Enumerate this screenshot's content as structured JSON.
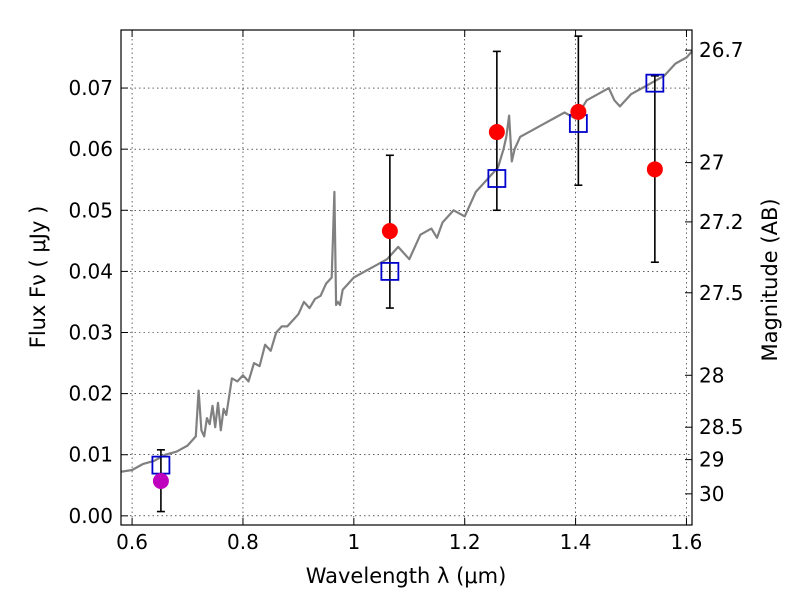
{
  "chart_data": {
    "type": "line",
    "xlabel": "Wavelength  λ (μm)",
    "ylabel": "Flux  Fν  ( μJy )",
    "ylabel_right": "Magnitude (AB)",
    "xlim": [
      0.58,
      1.61
    ],
    "ylim": [
      -0.0015,
      0.0795
    ],
    "grid": true,
    "x_ticks": [
      0.6,
      0.8,
      1.0,
      1.2,
      1.4,
      1.6
    ],
    "x_tick_labels": [
      "0.6",
      "0.8",
      "1",
      "1.2",
      "1.4",
      "1.6"
    ],
    "y_ticks": [
      0.0,
      0.01,
      0.02,
      0.03,
      0.04,
      0.05,
      0.06,
      0.07
    ],
    "y_tick_labels": [
      "0.00",
      "0.01",
      "0.02",
      "0.03",
      "0.04",
      "0.05",
      "0.06",
      "0.07"
    ],
    "right_ticks": [
      {
        "label": "26.7",
        "flux": 0.0762
      },
      {
        "label": "27",
        "flux": 0.0578
      },
      {
        "label": "27.2",
        "flux": 0.0481
      },
      {
        "label": "27.5",
        "flux": 0.0365
      },
      {
        "label": "28",
        "flux": 0.023
      },
      {
        "label": "28.5",
        "flux": 0.0145
      },
      {
        "label": "29",
        "flux": 0.0092
      },
      {
        "label": "30",
        "flux": 0.0036
      }
    ],
    "series": [
      {
        "type": "line",
        "color": "#808080",
        "x": [
          0.58,
          0.6,
          0.62,
          0.64,
          0.66,
          0.68,
          0.7,
          0.715,
          0.72,
          0.725,
          0.73,
          0.735,
          0.74,
          0.745,
          0.75,
          0.755,
          0.76,
          0.765,
          0.77,
          0.78,
          0.79,
          0.8,
          0.81,
          0.82,
          0.83,
          0.84,
          0.85,
          0.86,
          0.87,
          0.88,
          0.89,
          0.9,
          0.91,
          0.92,
          0.93,
          0.94,
          0.95,
          0.96,
          0.965,
          0.968,
          0.971,
          0.975,
          0.98,
          0.99,
          1.0,
          1.02,
          1.04,
          1.06,
          1.08,
          1.1,
          1.12,
          1.14,
          1.15,
          1.16,
          1.18,
          1.2,
          1.22,
          1.24,
          1.25,
          1.26,
          1.27,
          1.275,
          1.28,
          1.285,
          1.29,
          1.3,
          1.32,
          1.34,
          1.36,
          1.38,
          1.4,
          1.42,
          1.44,
          1.46,
          1.47,
          1.48,
          1.5,
          1.52,
          1.54,
          1.56,
          1.58,
          1.6,
          1.61
        ],
        "y": [
          0.0072,
          0.0075,
          0.0085,
          0.009,
          0.01,
          0.0105,
          0.0115,
          0.013,
          0.0205,
          0.014,
          0.013,
          0.016,
          0.015,
          0.018,
          0.0145,
          0.0185,
          0.014,
          0.0175,
          0.0165,
          0.0225,
          0.022,
          0.023,
          0.022,
          0.025,
          0.0245,
          0.028,
          0.027,
          0.03,
          0.031,
          0.031,
          0.032,
          0.033,
          0.035,
          0.034,
          0.0355,
          0.036,
          0.038,
          0.039,
          0.053,
          0.0345,
          0.035,
          0.0345,
          0.037,
          0.038,
          0.039,
          0.04,
          0.041,
          0.042,
          0.044,
          0.042,
          0.046,
          0.047,
          0.0455,
          0.048,
          0.05,
          0.049,
          0.053,
          0.055,
          0.056,
          0.057,
          0.06,
          0.062,
          0.0655,
          0.058,
          0.06,
          0.062,
          0.063,
          0.064,
          0.065,
          0.066,
          0.065,
          0.068,
          0.069,
          0.07,
          0.068,
          0.067,
          0.069,
          0.07,
          0.071,
          0.072,
          0.074,
          0.075,
          0.076
        ]
      },
      {
        "type": "scatter",
        "marker": "circle",
        "color": "#ff0000",
        "x": [
          1.065,
          1.258,
          1.405,
          1.543
        ],
        "y": [
          0.0466,
          0.0628,
          0.0661,
          0.0567
        ],
        "err_low": [
          0.0126,
          0.0128,
          0.012,
          0.0152
        ],
        "err_high": [
          0.0124,
          0.0132,
          0.0124,
          0.0153
        ]
      },
      {
        "type": "scatter",
        "marker": "circle",
        "color": "#bf00bf",
        "x": [
          0.652
        ],
        "y": [
          0.0057
        ],
        "err_low": [
          0.005
        ],
        "err_high": [
          0.0051
        ]
      },
      {
        "type": "scatter",
        "marker": "open-square",
        "color": "#0000cc",
        "x": [
          0.652,
          1.065,
          1.258,
          1.405,
          1.543
        ],
        "y": [
          0.0083,
          0.04,
          0.0552,
          0.0642,
          0.0708
        ]
      }
    ]
  }
}
